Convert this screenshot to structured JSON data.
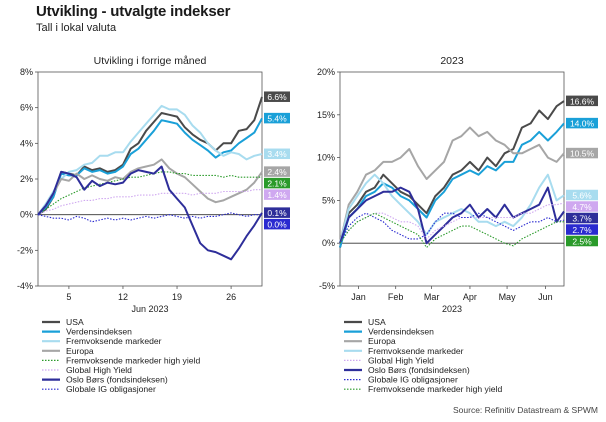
{
  "title": "Utvikling - utvalgte indekser",
  "subtitle": "Tall i lokal valuta",
  "source": "Source: Refinitiv Datastream & SPWM",
  "colors": {
    "usa": "#4a4a4a",
    "verden": "#1aa0d8",
    "fremvoksende": "#a8dcef",
    "europa": "#a6a6a6",
    "fremvoksende_hy": "#2a9a2a",
    "global_hy": "#cfa8f0",
    "oslo": "#2e2e9a",
    "global_ig": "#2a2ad0"
  },
  "chart_data": [
    {
      "type": "line",
      "title": "Utvikling i forrige måned",
      "xlabel": "Jun 2023",
      "x_ticks": [
        "5",
        "12",
        "19",
        "26"
      ],
      "x_tick_positions": [
        5,
        12,
        19,
        26
      ],
      "xlim": [
        1,
        30
      ],
      "ylim": [
        -4,
        8
      ],
      "y_ticks": [
        "-4%",
        "-2%",
        "0%",
        "2%",
        "4%",
        "6%",
        "8%"
      ],
      "y_tick_values": [
        -4,
        -2,
        0,
        2,
        4,
        6,
        8
      ],
      "grid": false,
      "x": [
        1,
        2,
        3,
        4,
        5,
        6,
        7,
        8,
        9,
        10,
        11,
        12,
        13,
        14,
        15,
        16,
        17,
        18,
        19,
        20,
        21,
        22,
        23,
        24,
        25,
        26,
        27,
        28,
        29,
        30
      ],
      "series": [
        {
          "name": "USA",
          "key": "usa",
          "style": "solid",
          "label": "6.6%",
          "label_value": 6.6,
          "values": [
            0,
            0.3,
            1.0,
            2.4,
            2.3,
            2.2,
            2.7,
            2.5,
            2.6,
            2.4,
            2.5,
            2.8,
            3.7,
            4.0,
            4.7,
            5.2,
            5.7,
            5.6,
            5.5,
            4.9,
            4.5,
            4.2,
            4.0,
            3.6,
            4.0,
            4.0,
            4.7,
            4.8,
            5.3,
            6.6
          ]
        },
        {
          "name": "Verdensindeksen",
          "key": "verden",
          "style": "solid",
          "label": "5.4%",
          "label_value": 5.4,
          "values": [
            0,
            0.4,
            1.0,
            2.3,
            2.2,
            2.2,
            2.6,
            2.4,
            2.5,
            2.3,
            2.4,
            2.7,
            3.4,
            3.7,
            4.2,
            4.7,
            5.3,
            5.2,
            5.1,
            4.6,
            4.2,
            3.9,
            3.6,
            3.2,
            3.5,
            3.6,
            4.0,
            4.3,
            4.6,
            5.4
          ]
        },
        {
          "name": "Fremvoksende markeder",
          "key": "fremvoksende",
          "style": "solid",
          "label": "3.4%",
          "label_value": 3.4,
          "values": [
            0,
            0.6,
            1.3,
            2.0,
            2.4,
            2.5,
            2.8,
            2.9,
            3.3,
            3.3,
            3.5,
            3.5,
            4.1,
            4.6,
            5.1,
            5.6,
            6.1,
            5.9,
            5.9,
            5.6,
            5.0,
            4.6,
            4.0,
            3.6,
            3.3,
            3.5,
            3.4,
            3.1,
            3.3,
            3.4
          ]
        },
        {
          "name": "Europa",
          "key": "europa",
          "style": "solid",
          "label": "2.4%",
          "label_value": 2.4,
          "values": [
            0,
            0.5,
            1.2,
            2.0,
            1.9,
            2.3,
            2.0,
            2.2,
            2.0,
            1.9,
            2.1,
            2.0,
            2.4,
            2.6,
            2.7,
            2.8,
            3.1,
            2.6,
            2.3,
            2.1,
            1.7,
            1.3,
            0.9,
            0.7,
            0.8,
            1.0,
            1.2,
            1.4,
            1.8,
            2.4
          ]
        },
        {
          "name": "Fremvoksende markeder high yield",
          "key": "fremvoksende_hy",
          "style": "dotted",
          "label": "2.1%",
          "label_value": 2.1,
          "values": [
            0,
            0.3,
            0.6,
            0.9,
            1.1,
            1.3,
            1.5,
            1.6,
            1.7,
            1.8,
            1.9,
            2.0,
            2.1,
            2.1,
            2.2,
            2.3,
            2.4,
            2.4,
            2.3,
            2.3,
            2.2,
            2.2,
            2.2,
            2.2,
            2.1,
            2.2,
            2.1,
            2.1,
            2.1,
            2.1
          ]
        },
        {
          "name": "Global High Yield",
          "key": "global_hy",
          "style": "dotted",
          "label": "1.4%",
          "label_value": 1.4,
          "values": [
            0,
            0.2,
            0.3,
            0.5,
            0.6,
            0.7,
            0.8,
            0.8,
            0.9,
            0.9,
            1.0,
            1.0,
            1.0,
            1.1,
            1.1,
            1.1,
            1.2,
            1.2,
            1.2,
            1.2,
            1.1,
            1.2,
            1.2,
            1.2,
            1.3,
            1.3,
            1.3,
            1.3,
            1.4,
            1.4
          ]
        },
        {
          "name": "Oslo Børs (fondsindeksen)",
          "key": "oslo",
          "style": "solid",
          "label": "0.1%",
          "label_value": 0.1,
          "values": [
            0,
            0.5,
            1.2,
            2.4,
            2.3,
            2.1,
            1.4,
            1.9,
            1.6,
            1.8,
            1.7,
            1.8,
            2.3,
            2.5,
            2.4,
            2.3,
            2.7,
            1.4,
            0.9,
            0.4,
            -0.6,
            -1.6,
            -2.0,
            -2.1,
            -2.3,
            -2.5,
            -1.9,
            -1.2,
            -0.6,
            0.1
          ]
        },
        {
          "name": "Globale IG obligasjoner",
          "key": "global_ig",
          "style": "dotted",
          "label": "0.0%",
          "label_value": 0.0,
          "values": [
            0,
            -0.1,
            -0.2,
            -0.2,
            -0.3,
            -0.1,
            -0.2,
            -0.4,
            -0.3,
            -0.2,
            -0.3,
            -0.2,
            -0.3,
            -0.2,
            -0.1,
            -0.2,
            -0.1,
            0,
            -0.1,
            -0.2,
            -0.1,
            -0.2,
            -0.1,
            -0.1,
            0,
            0.1,
            0,
            -0.1,
            0,
            0.0
          ]
        }
      ],
      "legend": {
        "placement": "bottom",
        "items": [
          "USA",
          "Verdensindeksen",
          "Fremvoksende markeder",
          "Europa",
          "Fremvoksende markeder high yield",
          "Global High Yield",
          "Oslo Børs (fondsindeksen)",
          "Globale IG obligasjoner"
        ]
      }
    },
    {
      "type": "line",
      "title": "2023",
      "xlabel": "2023",
      "x_ticks": [
        "Jan",
        "Feb",
        "Mar",
        "Apr",
        "May",
        "Jun"
      ],
      "x_tick_positions": [
        15,
        45,
        74,
        105,
        135,
        166
      ],
      "xlim": [
        0,
        181
      ],
      "ylim": [
        -5,
        20
      ],
      "y_ticks": [
        "-5%",
        "0%",
        "5%",
        "10%",
        "15%",
        "20%"
      ],
      "y_tick_values": [
        -5,
        0,
        5,
        10,
        15,
        20
      ],
      "grid": false,
      "x": [
        0,
        7,
        14,
        21,
        28,
        35,
        42,
        49,
        56,
        63,
        70,
        77,
        84,
        91,
        98,
        105,
        112,
        119,
        126,
        133,
        140,
        147,
        154,
        161,
        168,
        175,
        181
      ],
      "series": [
        {
          "name": "USA",
          "key": "usa",
          "style": "solid",
          "label": "16.6%",
          "label_value": 16.6,
          "values": [
            -0.5,
            3.5,
            4.5,
            6.0,
            6.5,
            8.0,
            7.0,
            6.0,
            5.5,
            4.5,
            3.5,
            5.5,
            6.5,
            8.0,
            8.5,
            9.5,
            8.5,
            10.0,
            9.0,
            10.5,
            11.0,
            13.5,
            14.0,
            15.5,
            14.5,
            16.0,
            16.6
          ]
        },
        {
          "name": "Verdensindeksen",
          "key": "verden",
          "style": "solid",
          "label": "14.0%",
          "label_value": 14.0,
          "values": [
            -0.5,
            3.0,
            4.0,
            5.5,
            6.0,
            7.0,
            6.5,
            5.5,
            5.0,
            4.0,
            3.0,
            5.0,
            6.0,
            7.5,
            8.0,
            8.5,
            8.0,
            9.0,
            8.5,
            9.5,
            9.5,
            11.5,
            12.0,
            13.0,
            12.0,
            13.0,
            14.0
          ]
        },
        {
          "name": "Europa",
          "key": "europa",
          "style": "solid",
          "label": "10.5%",
          "label_value": 10.5,
          "values": [
            0,
            4.5,
            6.0,
            8.0,
            8.5,
            9.5,
            9.5,
            10.0,
            11.0,
            9.0,
            7.5,
            8.5,
            9.5,
            12.0,
            12.5,
            13.5,
            12.5,
            13.0,
            12.0,
            11.5,
            10.5,
            10.5,
            11.0,
            11.5,
            10.0,
            9.5,
            10.5
          ]
        },
        {
          "name": "Fremvoksende markeder",
          "key": "fremvoksende",
          "style": "solid",
          "label": "5.6%",
          "label_value": 5.6,
          "values": [
            0,
            4.0,
            5.5,
            7.0,
            8.0,
            7.0,
            5.5,
            4.5,
            3.5,
            2.5,
            1.0,
            2.5,
            3.0,
            3.5,
            4.0,
            3.5,
            2.5,
            2.5,
            2.0,
            2.5,
            2.0,
            3.0,
            4.5,
            6.5,
            8.0,
            5.0,
            5.6
          ]
        },
        {
          "name": "Oslo Børs (fondsindeksen)",
          "key": "oslo",
          "style": "solid",
          "label": "3.7%",
          "label_value": 3.7,
          "values": [
            0,
            3.0,
            4.0,
            5.0,
            5.5,
            6.0,
            6.0,
            6.5,
            6.0,
            4.0,
            0,
            1.0,
            2.0,
            3.0,
            3.5,
            4.5,
            3.0,
            4.0,
            3.0,
            4.5,
            3.0,
            3.5,
            4.0,
            4.5,
            6.5,
            2.5,
            3.7
          ]
        },
        {
          "name": "Global High Yield",
          "key": "global_hy",
          "style": "dotted",
          "label": "4.7%",
          "label_value": 4.7,
          "values": [
            0,
            1.5,
            2.5,
            3.0,
            3.5,
            3.5,
            3.0,
            2.5,
            2.5,
            2.0,
            0.5,
            1.5,
            2.0,
            2.5,
            3.0,
            3.0,
            3.0,
            3.0,
            3.0,
            3.0,
            3.0,
            3.5,
            3.5,
            4.0,
            4.5,
            4.5,
            4.7
          ]
        },
        {
          "name": "Globale IG obligasjoner",
          "key": "global_ig",
          "style": "dotted",
          "label": "2.7%",
          "label_value": 2.7,
          "values": [
            0,
            2.0,
            3.0,
            3.5,
            3.0,
            2.5,
            1.5,
            1.0,
            0.5,
            0.5,
            1.0,
            2.5,
            3.5,
            3.5,
            3.0,
            3.0,
            3.5,
            3.0,
            2.5,
            2.0,
            1.5,
            2.0,
            2.5,
            2.5,
            3.0,
            2.5,
            2.7
          ]
        },
        {
          "name": "Fremvoksende markeder high yield",
          "key": "fremvoksende_hy",
          "style": "dotted",
          "label": "2.5%",
          "label_value": 2.5,
          "values": [
            0,
            1.5,
            2.5,
            3.0,
            3.5,
            3.0,
            2.5,
            2.0,
            1.5,
            1.0,
            -0.5,
            0.5,
            1.0,
            1.5,
            2.0,
            2.0,
            1.5,
            1.0,
            0.5,
            0,
            -0.3,
            0.5,
            1.0,
            1.5,
            2.0,
            2.5,
            2.5
          ]
        }
      ],
      "legend": {
        "placement": "bottom",
        "items": [
          "USA",
          "Verdensindeksen",
          "Europa",
          "Fremvoksende markeder",
          "Global High Yield",
          "Oslo Børs (fondsindeksen)",
          "Globale IG obligasjoner",
          "Fremvoksende markeder high yield"
        ]
      }
    }
  ]
}
